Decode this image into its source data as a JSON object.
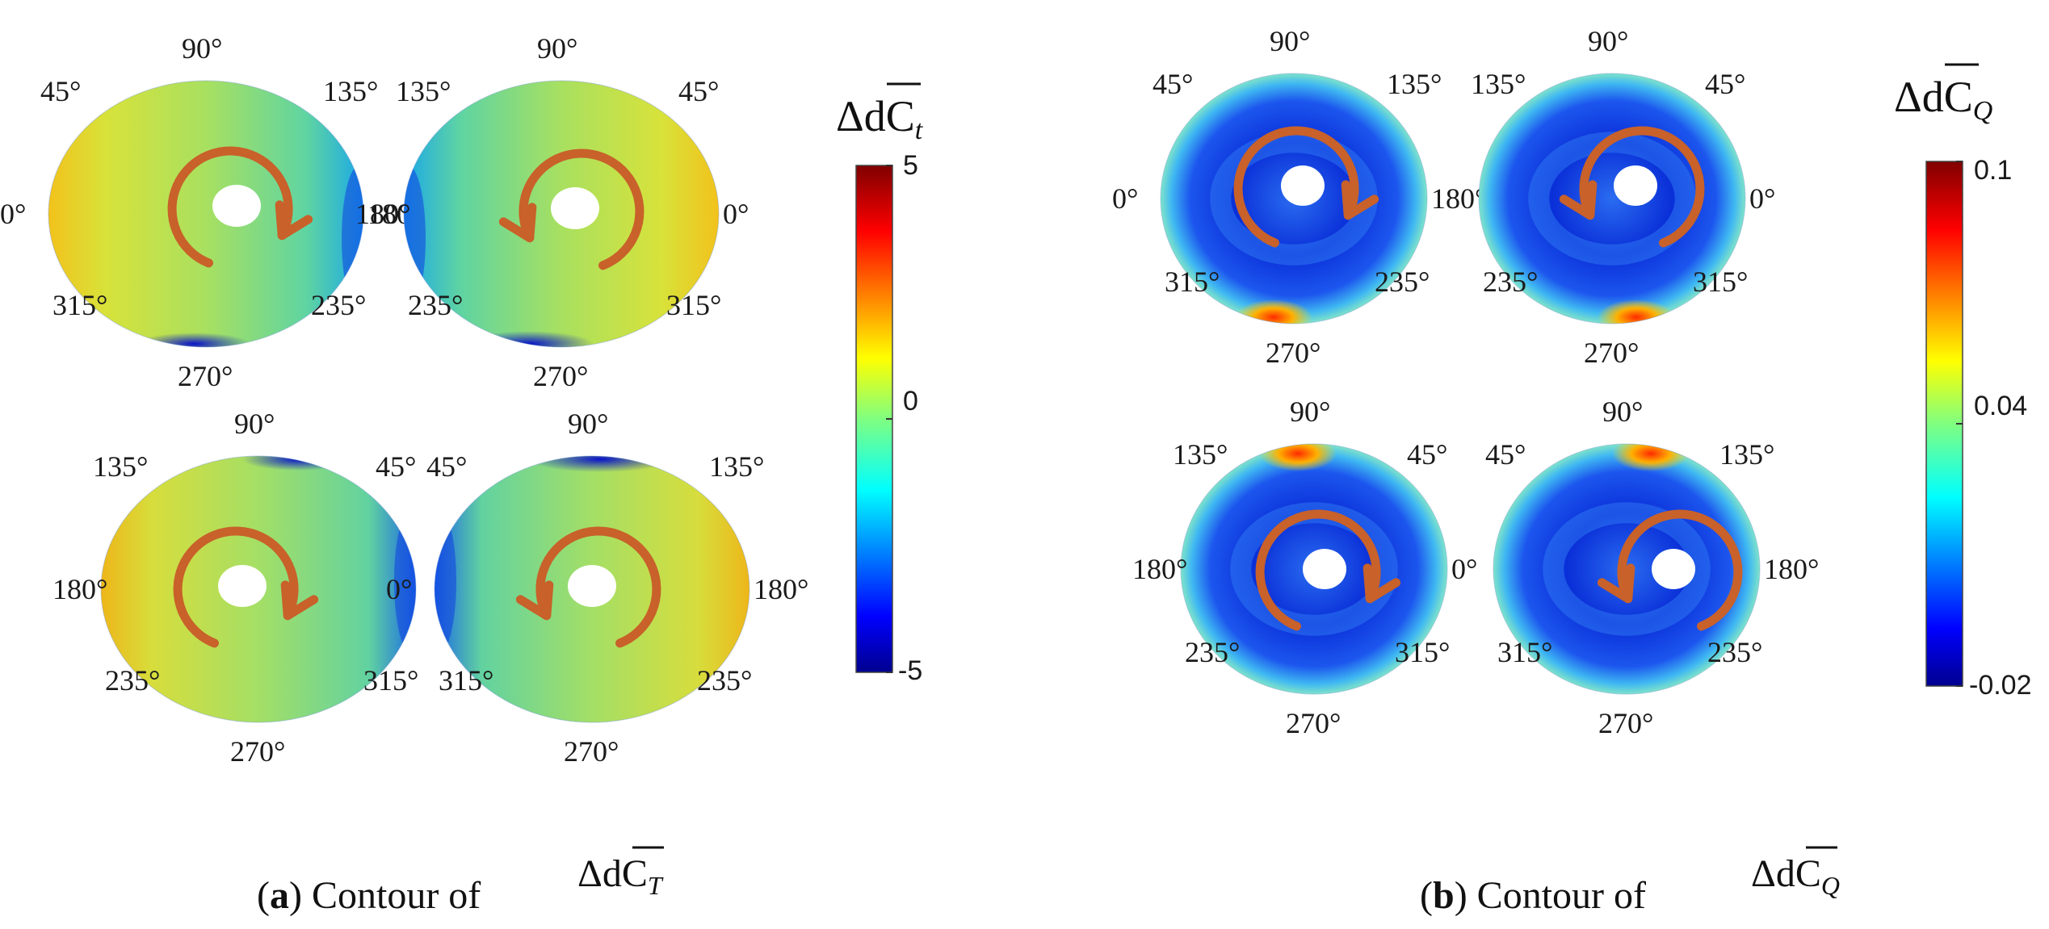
{
  "panel_a": {
    "rotors": [
      {
        "labels": [
          "90°",
          "45°",
          "135°",
          "0°",
          "180°",
          "315°",
          "235°",
          "270°"
        ],
        "direction": "cw"
      },
      {
        "labels": [
          "90°",
          "135°",
          "45°",
          "180°",
          "0°",
          "235°",
          "315°",
          "270°"
        ],
        "direction": "ccw"
      },
      {
        "labels": [
          "90°",
          "135°",
          "45°",
          "180°",
          "",
          "235°",
          "315°",
          "270°"
        ],
        "direction": "cw"
      },
      {
        "labels": [
          "90°",
          "45°",
          "135°",
          "0°",
          "180°",
          "315°",
          "235°",
          "270°"
        ],
        "direction": "ccw"
      }
    ],
    "colorbar": {
      "label_main": "ΔdC",
      "label_sub": "t",
      "ticks": [
        "5",
        "0",
        "-5"
      ],
      "range": [
        -5,
        5
      ]
    },
    "caption": {
      "letter": "a",
      "text": ") Contour of",
      "math_main": "ΔdC",
      "math_sub": "T"
    }
  },
  "panel_b": {
    "rotors": [
      {
        "labels": [
          "90°",
          "45°",
          "135°",
          "0°",
          "180°",
          "315°",
          "235°",
          "270°"
        ],
        "direction": "cw"
      },
      {
        "labels": [
          "90°",
          "135°",
          "45°",
          "",
          "0°",
          "235°",
          "315°",
          "270°"
        ],
        "direction": "ccw"
      },
      {
        "labels": [
          "90°",
          "135°",
          "45°",
          "180°",
          "0°",
          "235°",
          "315°",
          "270°"
        ],
        "direction": "cw"
      },
      {
        "labels": [
          "90°",
          "45°",
          "135°",
          "",
          "180°",
          "315°",
          "235°",
          "270°"
        ],
        "direction": "ccw"
      }
    ],
    "colorbar": {
      "label_main": "ΔdC",
      "label_sub": "Q",
      "ticks": [
        "0.1",
        "0.04",
        "-0.02"
      ],
      "range": [
        -0.02,
        0.1
      ]
    },
    "caption": {
      "letter": "b",
      "text": ") Contour of",
      "math_main": "ΔdC",
      "math_sub": "Q"
    }
  },
  "colors": {
    "arrow": "#c8612a",
    "hub": "#ffffff",
    "jet_low": "#00008f",
    "jet_high": "#800000"
  }
}
